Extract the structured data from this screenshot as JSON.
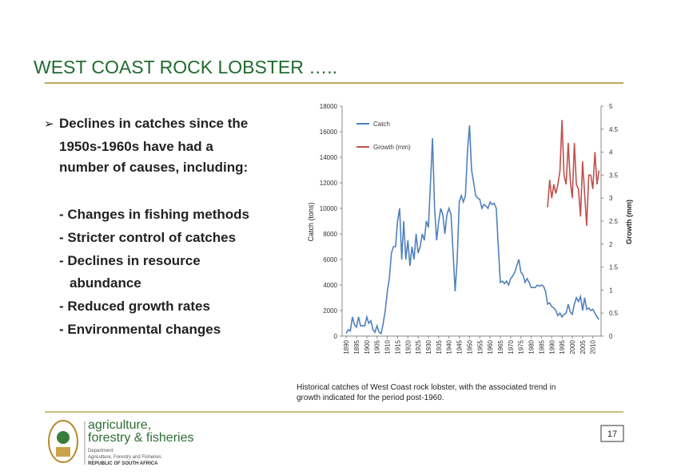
{
  "slide": {
    "title": "WEST COAST ROCK LOBSTER …..",
    "bullet": "Declines in catches since the",
    "bullet_lines": [
      "1950s-1960s have had a",
      "number of causes, including:"
    ],
    "causes": [
      "- Changes in fishing methods",
      "- Stricter control of catches",
      "- Declines in resource",
      "abundance",
      "- Reduced growth rates",
      "- Environmental changes"
    ],
    "caption": [
      "Historical catches of West Coast rock lobster, with the associated trend in",
      "growth indicated for the period post-1960."
    ],
    "page_number": "17",
    "logo": {
      "name": [
        "agriculture,",
        "forestry & fisheries"
      ],
      "department": [
        "Department:",
        "Agriculture, Forestry and Fisheries",
        "REPUBLIC OF SOUTH AFRICA"
      ]
    }
  },
  "chart_data": {
    "type": "line",
    "y_label": "Catch (tons)",
    "y2_label": "Growth (mm)",
    "x": [
      1890,
      1891,
      1892,
      1893,
      1894,
      1895,
      1896,
      1897,
      1898,
      1899,
      1900,
      1901,
      1902,
      1903,
      1904,
      1905,
      1906,
      1907,
      1908,
      1909,
      1910,
      1911,
      1912,
      1913,
      1914,
      1915,
      1916,
      1917,
      1918,
      1919,
      1920,
      1921,
      1922,
      1923,
      1924,
      1925,
      1926,
      1927,
      1928,
      1929,
      1930,
      1931,
      1932,
      1933,
      1934,
      1935,
      1936,
      1937,
      1938,
      1939,
      1940,
      1941,
      1942,
      1943,
      1944,
      1945,
      1946,
      1947,
      1948,
      1949,
      1950,
      1951,
      1952,
      1953,
      1954,
      1955,
      1956,
      1957,
      1958,
      1959,
      1960,
      1961,
      1962,
      1963,
      1964,
      1965,
      1966,
      1967,
      1968,
      1969,
      1970,
      1971,
      1972,
      1973,
      1974,
      1975,
      1976,
      1977,
      1978,
      1979,
      1980,
      1981,
      1982,
      1983,
      1984,
      1985,
      1986,
      1987,
      1988,
      1989,
      1990,
      1991,
      1992,
      1993,
      1994,
      1995,
      1996,
      1997,
      1998,
      1999,
      2000,
      2001,
      2002,
      2003,
      2004,
      2005,
      2006,
      2007,
      2008,
      2009,
      2010,
      2011,
      2012,
      2013
    ],
    "series": [
      {
        "name": "Catch",
        "color": "#4f81bd",
        "values": [
          200,
          500,
          400,
          1500,
          900,
          700,
          1500,
          800,
          800,
          800,
          1500,
          1000,
          1200,
          500,
          300,
          800,
          300,
          200,
          1000,
          2000,
          3500,
          4500,
          6500,
          7000,
          7000,
          9000,
          10000,
          6000,
          9000,
          6000,
          7500,
          5500,
          7000,
          6000,
          8000,
          6500,
          7000,
          8000,
          7500,
          9000,
          8500,
          12000,
          15500,
          10000,
          7500,
          9000,
          10000,
          9500,
          8000,
          9500,
          10000,
          9500,
          6500,
          3500,
          6000,
          10500,
          11000,
          10500,
          11000,
          14500,
          16500,
          13000,
          12000,
          11000,
          10800,
          10700,
          10000,
          10300,
          10200,
          10000,
          10500,
          10300,
          10400,
          10000,
          7000,
          4200,
          4300,
          4100,
          4300,
          4000,
          4500,
          4700,
          5000,
          5500,
          6000,
          5000,
          4800,
          4200,
          4500,
          4200,
          3800,
          3800,
          3800,
          4000,
          3900,
          4000,
          3900,
          3500,
          2500,
          2600,
          2300,
          2200,
          2000,
          1600,
          1800,
          1500,
          1700,
          1800,
          2500,
          1900,
          1700,
          2500,
          3000,
          2700,
          3100,
          2000,
          3000,
          2100,
          2200,
          2000,
          2100,
          1800,
          1500,
          1300
        ]
      },
      {
        "name": "Growth (mm)",
        "color": "#c0504d",
        "axis": "y2",
        "values": [
          null,
          null,
          null,
          null,
          null,
          null,
          null,
          null,
          null,
          null,
          null,
          null,
          null,
          null,
          null,
          null,
          null,
          null,
          null,
          null,
          null,
          null,
          null,
          null,
          null,
          null,
          null,
          null,
          null,
          null,
          null,
          null,
          null,
          null,
          null,
          null,
          null,
          null,
          null,
          null,
          null,
          null,
          null,
          null,
          null,
          null,
          null,
          null,
          null,
          null,
          null,
          null,
          null,
          null,
          null,
          null,
          null,
          null,
          null,
          null,
          null,
          null,
          null,
          null,
          null,
          null,
          null,
          null,
          null,
          null,
          null,
          null,
          null,
          null,
          null,
          null,
          null,
          null,
          null,
          null,
          null,
          null,
          null,
          null,
          null,
          null,
          null,
          null,
          null,
          null,
          null,
          null,
          null,
          null,
          null,
          null,
          null,
          null,
          2.8,
          3.4,
          3.0,
          3.3,
          3.1,
          3.3,
          3.6,
          4.7,
          3.5,
          3.3,
          4.2,
          3.4,
          3.0,
          4.2,
          3.3,
          3.2,
          2.6,
          3.8,
          3.1,
          2.4,
          3.5,
          3.5,
          3.2,
          4.0,
          3.3,
          3.6
        ]
      }
    ],
    "xlim": [
      1888,
      2014
    ],
    "xticks": [
      1890,
      1895,
      1900,
      1905,
      1910,
      1915,
      1920,
      1925,
      1930,
      1935,
      1940,
      1945,
      1950,
      1955,
      1960,
      1965,
      1970,
      1975,
      1980,
      1985,
      1990,
      1995,
      2000,
      2005,
      2010
    ],
    "ylim": [
      0,
      18000
    ],
    "yticks": [
      0,
      2000,
      4000,
      6000,
      8000,
      10000,
      12000,
      14000,
      16000,
      18000
    ],
    "y2lim": [
      0,
      5
    ],
    "y2ticks": [
      0,
      0.5,
      1,
      1.5,
      2,
      2.5,
      3,
      3.5,
      4,
      4.5,
      5
    ],
    "legend": "upper left"
  }
}
